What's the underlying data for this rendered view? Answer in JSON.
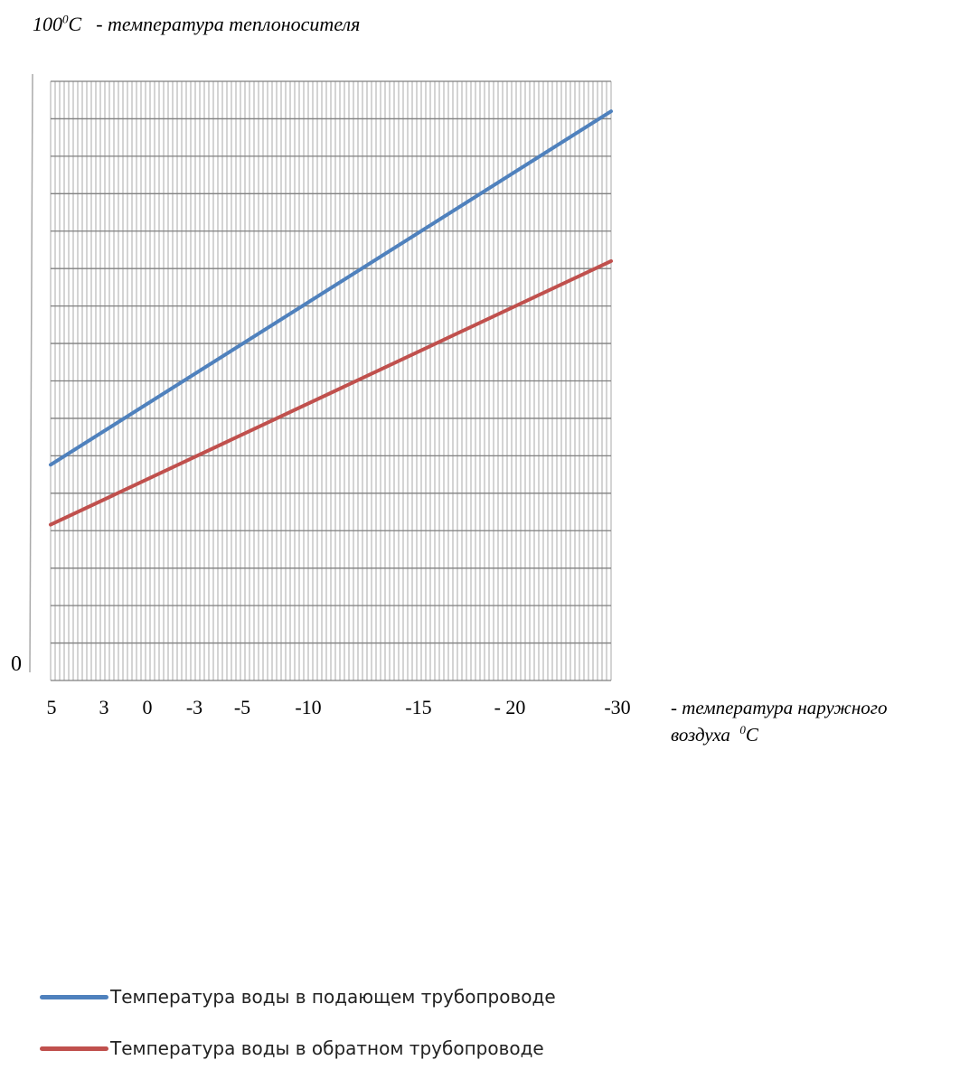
{
  "header": {
    "value": "100",
    "degree_sup": "0",
    "unit": "C",
    "description": "- температура теплоносителя"
  },
  "chart_data": {
    "type": "line",
    "ylabel": "1000C - температура теплоносителя",
    "y_tick_labels": [
      "0"
    ],
    "ylim": [
      0,
      100
    ],
    "grid": true,
    "categories": [
      "5",
      "3",
      "0",
      "-3",
      "-5",
      "-10",
      "-15",
      "- 20",
      "-30"
    ],
    "x_values": [
      5,
      3,
      0,
      -3,
      -5,
      -10,
      -15,
      -20,
      -30
    ],
    "xlabel": "- температура наружного воздуха 0C",
    "xlabel_parts": {
      "line1": "- температура наружного",
      "line2": "воздуха",
      "sup": "0",
      "unit": "C"
    },
    "series": [
      {
        "name": "Температура воды в подающем трубопроводе",
        "color": "#4f81bd",
        "x": [
          5,
          -30
        ],
        "values": [
          36,
          95
        ]
      },
      {
        "name": "Температура воды в обратном трубопроводе",
        "color": "#c0504d",
        "x": [
          5,
          -30
        ],
        "values": [
          26,
          70
        ]
      }
    ],
    "legend_position": "bottom-left"
  }
}
